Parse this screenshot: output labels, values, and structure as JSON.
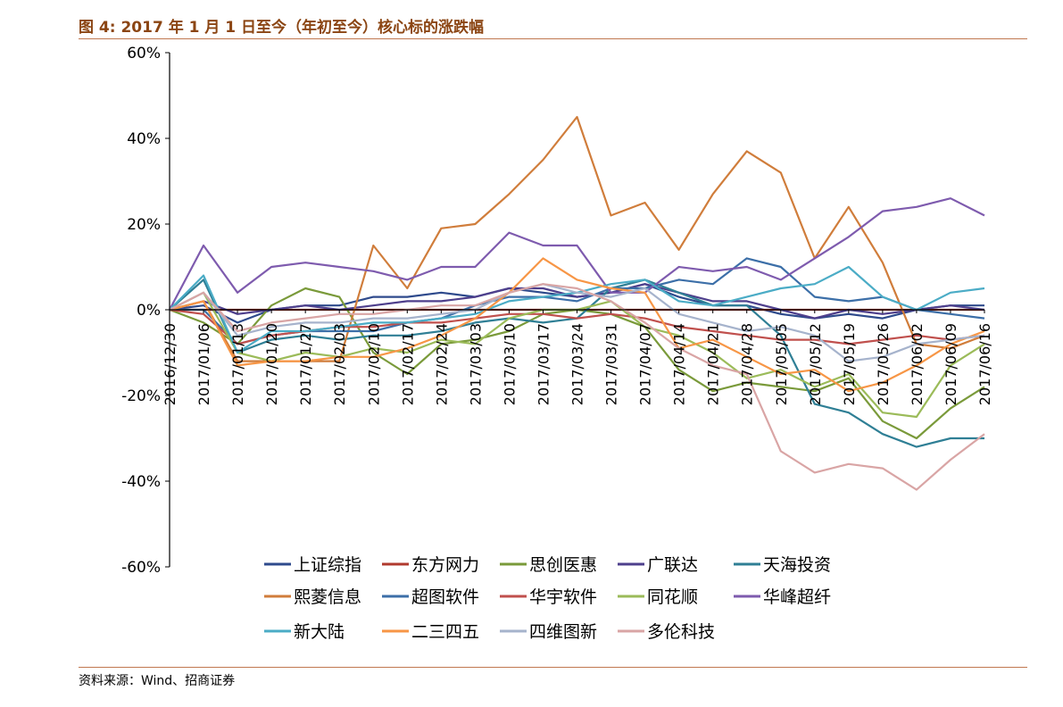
{
  "header": {
    "title": "图 4:  2017 年 1 月 1 日至今（年初至今）核心标的涨跌幅"
  },
  "footer": {
    "source": "资料来源：Wind、招商证券"
  },
  "chart_data": {
    "type": "line",
    "title": "",
    "xlabel": "",
    "ylabel": "",
    "ylim": [
      -60,
      60
    ],
    "yticks": [
      "60%",
      "40%",
      "20%",
      "0%",
      "-20%",
      "-40%",
      "-60%"
    ],
    "ytick_values": [
      60,
      40,
      20,
      0,
      -20,
      -40,
      -60
    ],
    "x": [
      "2016/12/30",
      "2017/01/06",
      "2017/01/13",
      "2017/01/20",
      "2017/01/27",
      "2017/02/03",
      "2017/02/10",
      "2017/02/17",
      "2017/02/24",
      "2017/03/03",
      "2017/03/10",
      "2017/03/17",
      "2017/03/24",
      "2017/03/31",
      "2017/04/07",
      "2017/04/14",
      "2017/04/21",
      "2017/04/28",
      "2017/05/05",
      "2017/05/12",
      "2017/05/19",
      "2017/05/26",
      "2017/06/02",
      "2017/06/09",
      "2017/06/16"
    ],
    "grid": false,
    "legend_position": "bottom",
    "series": [
      {
        "name": "上证综指",
        "color": "#2E4A8C",
        "values": [
          0,
          1,
          -3,
          0,
          1,
          1,
          3,
          3,
          4,
          3,
          5,
          4,
          3,
          4,
          6,
          3,
          1,
          1,
          -1,
          -2,
          -1,
          -2,
          0,
          1,
          1
        ]
      },
      {
        "name": "东方网力",
        "color": "#B03A2E",
        "values": [
          0,
          0,
          0,
          0,
          0,
          0,
          0,
          0,
          0,
          0,
          0,
          0,
          0,
          0,
          0,
          0,
          0,
          0,
          0,
          0,
          0,
          0,
          0,
          0,
          0
        ]
      },
      {
        "name": "思创医惠",
        "color": "#7A9A3A",
        "values": [
          0,
          -3,
          -8,
          1,
          5,
          3,
          -10,
          -15,
          -8,
          -7,
          -5,
          -1,
          0,
          -1,
          -4,
          -14,
          -19,
          -17,
          -18,
          -19,
          -16,
          -26,
          -30,
          -23,
          -18
        ]
      },
      {
        "name": "广联达",
        "color": "#4E3F8C",
        "values": [
          0,
          2,
          -1,
          0,
          1,
          0,
          1,
          2,
          2,
          3,
          5,
          5,
          3,
          4,
          6,
          4,
          2,
          2,
          0,
          -2,
          0,
          -1,
          0,
          1,
          0
        ]
      },
      {
        "name": "天海投资",
        "color": "#2F7F95",
        "values": [
          0,
          7,
          -10,
          -7,
          -6,
          -7,
          -6,
          -6,
          -5,
          -3,
          -2,
          -3,
          -2,
          5,
          7,
          4,
          1,
          1,
          -6,
          -22,
          -24,
          -29,
          -32,
          -30,
          -30
        ]
      },
      {
        "name": "熙菱信息",
        "color": "#D07D3B",
        "values": [
          0,
          2,
          -12,
          -12,
          -12,
          -12,
          15,
          5,
          19,
          20,
          27,
          35,
          45,
          22,
          25,
          14,
          27,
          37,
          32,
          12,
          24,
          11,
          -8,
          -9,
          -6
        ]
      },
      {
        "name": "超图软件",
        "color": "#3C6FA8",
        "values": [
          0,
          0,
          -8,
          -6,
          -5,
          -5,
          -5,
          -3,
          -2,
          1,
          3,
          3,
          2,
          5,
          5,
          7,
          6,
          12,
          10,
          3,
          2,
          3,
          0,
          -1,
          -2
        ]
      },
      {
        "name": "华宇软件",
        "color": "#C0504D",
        "values": [
          0,
          -1,
          -8,
          -6,
          -5,
          -4,
          -4,
          -3,
          -3,
          -2,
          -1,
          -1,
          -2,
          -1,
          -2,
          -4,
          -5,
          -6,
          -7,
          -7,
          -8,
          -7,
          -6,
          -7,
          -6
        ]
      },
      {
        "name": "同花顺",
        "color": "#9BBB59",
        "values": [
          0,
          4,
          -10,
          -12,
          -10,
          -11,
          -9,
          -10,
          -7,
          -8,
          -2,
          0,
          0,
          2,
          -4,
          -6,
          -10,
          -16,
          -14,
          -18,
          -15,
          -24,
          -25,
          -13,
          -8
        ]
      },
      {
        "name": "华峰超纤",
        "color": "#7E5BAE",
        "values": [
          0,
          15,
          4,
          10,
          11,
          10,
          9,
          7,
          10,
          10,
          18,
          15,
          15,
          4,
          4,
          10,
          9,
          10,
          7,
          12,
          17,
          23,
          24,
          26,
          22
        ]
      },
      {
        "name": "新大陆",
        "color": "#4BACC6",
        "values": [
          0,
          8,
          -10,
          -5,
          -5,
          -4,
          -3,
          -3,
          -2,
          -1,
          2,
          3,
          4,
          6,
          7,
          2,
          1,
          3,
          5,
          6,
          10,
          3,
          0,
          4,
          5
        ]
      },
      {
        "name": "二三四五",
        "color": "#F79646",
        "values": [
          0,
          2,
          -13,
          -12,
          -12,
          -11,
          -11,
          -9,
          -6,
          -2,
          4,
          12,
          7,
          5,
          4,
          -9,
          -7,
          -11,
          -15,
          -14,
          -19,
          -17,
          -13,
          -8,
          -5
        ]
      },
      {
        "name": "四维图新",
        "color": "#A6B3CC",
        "values": [
          0,
          4,
          -6,
          -4,
          -3,
          -3,
          -2,
          -2,
          -1,
          0,
          4,
          6,
          4,
          3,
          5,
          -1,
          -3,
          -5,
          -4,
          -6,
          -12,
          -11,
          -8,
          -7,
          -6
        ]
      },
      {
        "name": "多伦科技",
        "color": "#D9A5A5",
        "values": [
          0,
          4,
          -5,
          -3,
          -2,
          -1,
          -1,
          0,
          1,
          1,
          4,
          6,
          5,
          2,
          -3,
          -9,
          -13,
          -15,
          -33,
          -38,
          -36,
          -37,
          -42,
          -35,
          -29
        ]
      }
    ]
  }
}
